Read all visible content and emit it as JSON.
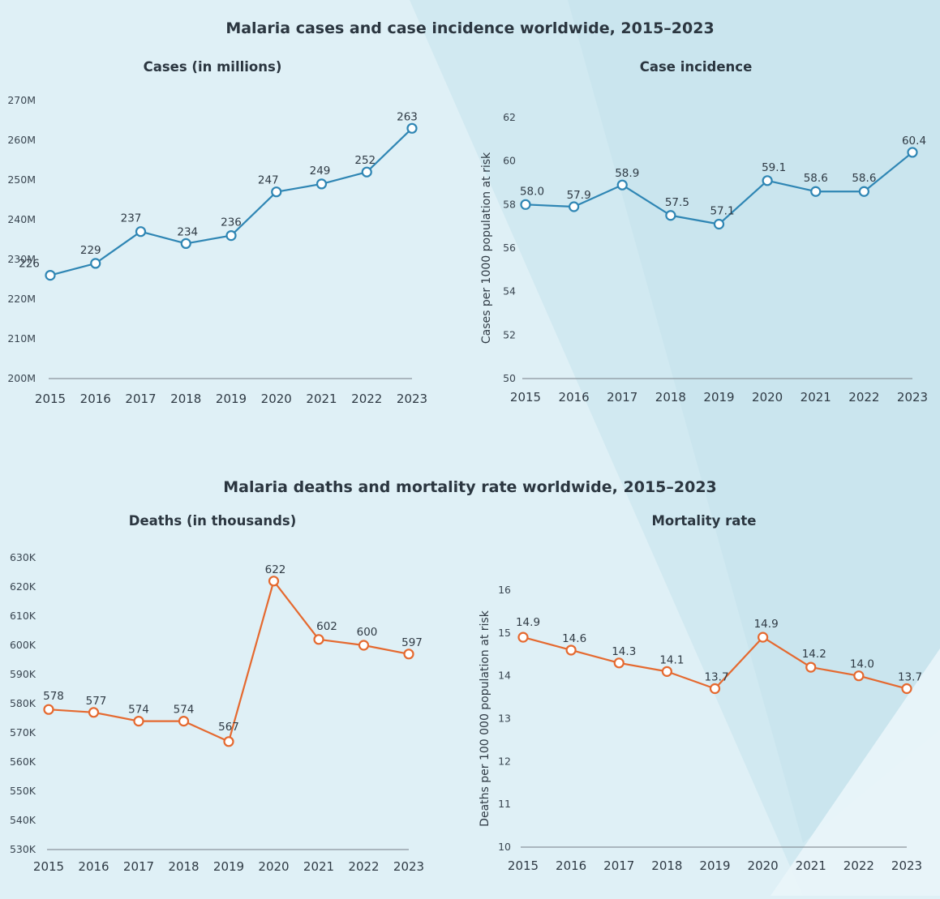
{
  "section1_title": "Malaria cases and case incidence worldwide, 2015–2023",
  "section2_title": "Malaria deaths and mortality rate worldwide, 2015–2023",
  "colors": {
    "blue": "#2f86b4",
    "orange": "#e5692f",
    "axis": "#8a949c",
    "background": "#dff0f6"
  },
  "chart_data": [
    {
      "id": "cases",
      "type": "line",
      "title": "Cases (in millions)",
      "xlabel": "",
      "ylabel": "",
      "x": [
        "2015",
        "2016",
        "2017",
        "2018",
        "2019",
        "2020",
        "2021",
        "2022",
        "2023"
      ],
      "values": [
        226,
        229,
        237,
        234,
        236,
        247,
        249,
        252,
        263
      ],
      "labels": [
        "226",
        "229",
        "237",
        "234",
        "236",
        "247",
        "249",
        "252",
        "263"
      ],
      "ylim": [
        200,
        270
      ],
      "yticks": [
        200,
        210,
        220,
        230,
        240,
        250,
        260,
        270
      ],
      "ytick_labels": [
        "200M",
        "210M",
        "220M",
        "230M",
        "240M",
        "250M",
        "260M",
        "270M"
      ],
      "color": "#2f86b4"
    },
    {
      "id": "incidence",
      "type": "line",
      "title": "Case incidence",
      "xlabel": "",
      "ylabel": "Cases per 1000 population at risk",
      "x": [
        "2015",
        "2016",
        "2017",
        "2018",
        "2019",
        "2020",
        "2021",
        "2022",
        "2023"
      ],
      "values": [
        58.0,
        57.9,
        58.9,
        57.5,
        57.1,
        59.1,
        58.6,
        58.6,
        60.4
      ],
      "labels": [
        "58.0",
        "57.9",
        "58.9",
        "57.5",
        "57.1",
        "59.1",
        "58.6",
        "58.6",
        "60.4"
      ],
      "ylim": [
        50,
        62
      ],
      "yticks": [
        50,
        52,
        54,
        56,
        58,
        60,
        62
      ],
      "ytick_labels": [
        "50",
        "52",
        "54",
        "56",
        "58",
        "60",
        "62"
      ],
      "color": "#2f86b4"
    },
    {
      "id": "deaths",
      "type": "line",
      "title": "Deaths (in thousands)",
      "xlabel": "",
      "ylabel": "",
      "x": [
        "2015",
        "2016",
        "2017",
        "2018",
        "2019",
        "2020",
        "2021",
        "2022",
        "2023"
      ],
      "values": [
        578,
        577,
        574,
        574,
        567,
        622,
        602,
        600,
        597
      ],
      "labels": [
        "578",
        "577",
        "574",
        "574",
        "567",
        "622",
        "602",
        "600",
        "597"
      ],
      "ylim": [
        530,
        630
      ],
      "yticks": [
        530,
        540,
        550,
        560,
        570,
        580,
        590,
        600,
        610,
        620,
        630
      ],
      "ytick_labels": [
        "530K",
        "540K",
        "550K",
        "560K",
        "570K",
        "580K",
        "590K",
        "600K",
        "610K",
        "620K",
        "630K"
      ],
      "color": "#e5692f"
    },
    {
      "id": "mortality",
      "type": "line",
      "title": "Mortality rate",
      "xlabel": "",
      "ylabel": "Deaths per 100 000 population at risk",
      "x": [
        "2015",
        "2016",
        "2017",
        "2018",
        "2019",
        "2020",
        "2021",
        "2022",
        "2023"
      ],
      "values": [
        14.9,
        14.6,
        14.3,
        14.1,
        13.7,
        14.9,
        14.2,
        14.0,
        13.7
      ],
      "labels": [
        "14.9",
        "14.6",
        "14.3",
        "14.1",
        "13.7",
        "14.9",
        "14.2",
        "14.0",
        "13.7"
      ],
      "ylim": [
        10,
        16
      ],
      "yticks": [
        10,
        11,
        12,
        13,
        14,
        15,
        16
      ],
      "ytick_labels": [
        "10",
        "11",
        "12",
        "13",
        "14",
        "15",
        "16"
      ],
      "color": "#e5692f"
    }
  ]
}
